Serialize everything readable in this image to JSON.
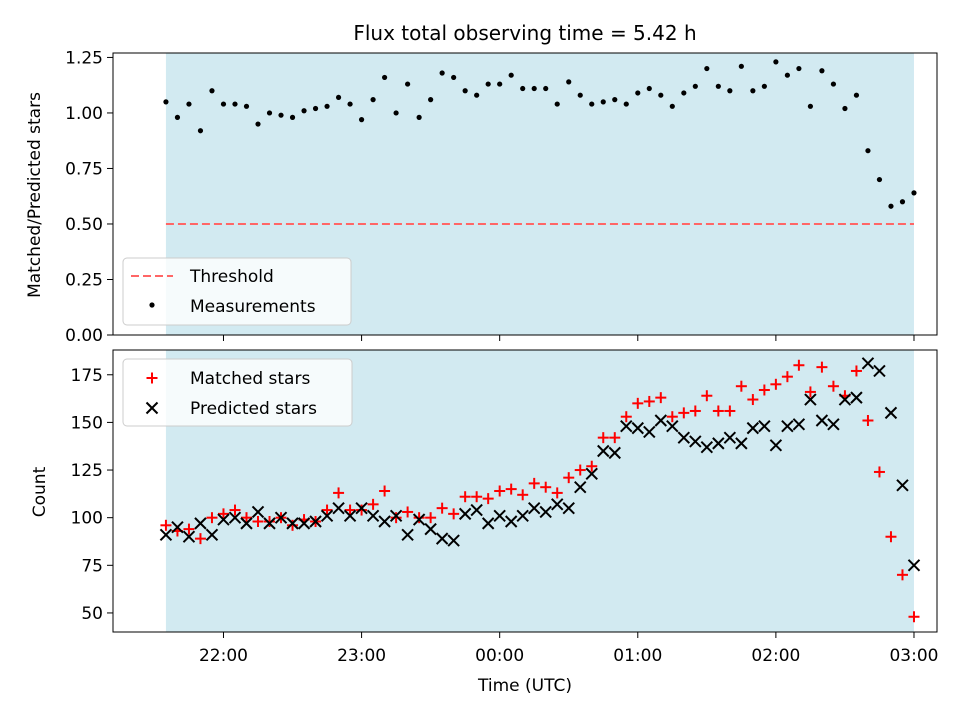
{
  "title": "Flux total observing time = 5.42 h",
  "colors": {
    "shade": "#add8e6",
    "threshold": "#ff6666",
    "measurement": "#000000",
    "matched": "#ff0000",
    "predicted": "#000000"
  },
  "chart_data": [
    {
      "type": "scatter",
      "ylabel": "Matched/Predicted stars",
      "ylim": [
        0,
        1.27
      ],
      "yticks": [
        "0.00",
        "0.25",
        "0.50",
        "0.75",
        "1.00",
        "1.25"
      ],
      "shaded_range": [
        "21:35",
        "03:00"
      ],
      "legend": {
        "position": "lower-left",
        "entries": [
          "Threshold",
          "Measurements"
        ]
      },
      "threshold": {
        "name": "Threshold",
        "value": 0.5
      },
      "series": [
        {
          "name": "Measurements",
          "x": [
            "21:35",
            "21:40",
            "21:45",
            "21:50",
            "21:55",
            "22:00",
            "22:05",
            "22:10",
            "22:15",
            "22:20",
            "22:25",
            "22:30",
            "22:35",
            "22:40",
            "22:45",
            "22:50",
            "22:55",
            "23:00",
            "23:05",
            "23:10",
            "23:15",
            "23:20",
            "23:25",
            "23:30",
            "23:35",
            "23:40",
            "23:45",
            "23:50",
            "23:55",
            "00:00",
            "00:05",
            "00:10",
            "00:15",
            "00:20",
            "00:25",
            "00:30",
            "00:35",
            "00:40",
            "00:45",
            "00:50",
            "00:55",
            "01:00",
            "01:05",
            "01:10",
            "01:15",
            "01:20",
            "01:25",
            "01:30",
            "01:35",
            "01:40",
            "01:45",
            "01:50",
            "01:55",
            "02:00",
            "02:05",
            "02:10",
            "02:15",
            "02:20",
            "02:25",
            "02:30",
            "02:35",
            "02:40",
            "02:45",
            "02:50",
            "02:55",
            "03:00"
          ],
          "values": [
            1.05,
            0.98,
            1.04,
            0.92,
            1.1,
            1.04,
            1.04,
            1.03,
            0.95,
            1.0,
            0.99,
            0.98,
            1.01,
            1.02,
            1.03,
            1.07,
            1.04,
            0.97,
            1.06,
            1.16,
            1.0,
            1.13,
            0.98,
            1.06,
            1.18,
            1.16,
            1.1,
            1.08,
            1.13,
            1.13,
            1.17,
            1.11,
            1.11,
            1.11,
            1.04,
            1.14,
            1.08,
            1.04,
            1.05,
            1.06,
            1.04,
            1.09,
            1.11,
            1.08,
            1.03,
            1.09,
            1.12,
            1.2,
            1.12,
            1.1,
            1.21,
            1.1,
            1.12,
            1.23,
            1.17,
            1.2,
            1.03,
            1.19,
            1.13,
            1.02,
            1.08,
            0.83,
            0.7,
            0.58,
            0.6,
            0.64
          ]
        }
      ]
    },
    {
      "type": "scatter",
      "xlabel": "Time (UTC)",
      "ylabel": "Count",
      "ylim": [
        40,
        188
      ],
      "yticks": [
        "50",
        "75",
        "100",
        "125",
        "150",
        "175"
      ],
      "xticks": [
        "22:00",
        "23:00",
        "00:00",
        "01:00",
        "02:00",
        "03:00"
      ],
      "shaded_range": [
        "21:35",
        "03:00"
      ],
      "legend": {
        "position": "top-left",
        "entries": [
          "Matched stars",
          "Predicted stars"
        ]
      },
      "series": [
        {
          "name": "Matched stars",
          "x": [
            "21:35",
            "21:40",
            "21:45",
            "21:50",
            "21:55",
            "22:00",
            "22:05",
            "22:10",
            "22:15",
            "22:20",
            "22:25",
            "22:30",
            "22:35",
            "22:40",
            "22:45",
            "22:50",
            "22:55",
            "23:00",
            "23:05",
            "23:10",
            "23:15",
            "23:20",
            "23:25",
            "23:30",
            "23:35",
            "23:40",
            "23:45",
            "23:50",
            "23:55",
            "00:00",
            "00:05",
            "00:10",
            "00:15",
            "00:20",
            "00:25",
            "00:30",
            "00:35",
            "00:40",
            "00:45",
            "00:50",
            "00:55",
            "01:00",
            "01:05",
            "01:10",
            "01:15",
            "01:20",
            "01:25",
            "01:30",
            "01:35",
            "01:40",
            "01:45",
            "01:50",
            "01:55",
            "02:00",
            "02:05",
            "02:10",
            "02:15",
            "02:20",
            "02:25",
            "02:30",
            "02:35",
            "02:40",
            "02:45",
            "02:50",
            "02:55",
            "03:00"
          ],
          "values": [
            96,
            93,
            94,
            89,
            100,
            102,
            104,
            100,
            98,
            98,
            100,
            96,
            99,
            98,
            104,
            113,
            104,
            104,
            107,
            114,
            100,
            103,
            100,
            100,
            105,
            102,
            111,
            111,
            110,
            114,
            115,
            112,
            118,
            116,
            113,
            121,
            125,
            127,
            142,
            142,
            153,
            160,
            161,
            163,
            153,
            155,
            156,
            164,
            156,
            156,
            169,
            162,
            167,
            170,
            174,
            180,
            166,
            179,
            169,
            164,
            177,
            151,
            124,
            90,
            70,
            48
          ]
        },
        {
          "name": "Predicted stars",
          "x": [
            "21:35",
            "21:40",
            "21:45",
            "21:50",
            "21:55",
            "22:00",
            "22:05",
            "22:10",
            "22:15",
            "22:20",
            "22:25",
            "22:30",
            "22:35",
            "22:40",
            "22:45",
            "22:50",
            "22:55",
            "23:00",
            "23:05",
            "23:10",
            "23:15",
            "23:20",
            "23:25",
            "23:30",
            "23:35",
            "23:40",
            "23:45",
            "23:50",
            "23:55",
            "00:00",
            "00:05",
            "00:10",
            "00:15",
            "00:20",
            "00:25",
            "00:30",
            "00:35",
            "00:40",
            "00:45",
            "00:50",
            "00:55",
            "01:00",
            "01:05",
            "01:10",
            "01:15",
            "01:20",
            "01:25",
            "01:30",
            "01:35",
            "01:40",
            "01:45",
            "01:50",
            "01:55",
            "02:00",
            "02:05",
            "02:10",
            "02:15",
            "02:20",
            "02:25",
            "02:30",
            "02:35",
            "02:40",
            "02:45",
            "02:50",
            "02:55",
            "03:00"
          ],
          "values": [
            91,
            95,
            90,
            97,
            91,
            99,
            100,
            97,
            103,
            97,
            100,
            97,
            97,
            98,
            101,
            105,
            101,
            105,
            101,
            98,
            101,
            91,
            99,
            94,
            89,
            88,
            102,
            104,
            97,
            101,
            98,
            101,
            105,
            103,
            107,
            105,
            116,
            123,
            135,
            134,
            148,
            147,
            145,
            151,
            148,
            142,
            140,
            137,
            139,
            142,
            139,
            147,
            148,
            138,
            148,
            149,
            162,
            151,
            149,
            162,
            163,
            181,
            177,
            155,
            117,
            75
          ]
        }
      ]
    }
  ]
}
